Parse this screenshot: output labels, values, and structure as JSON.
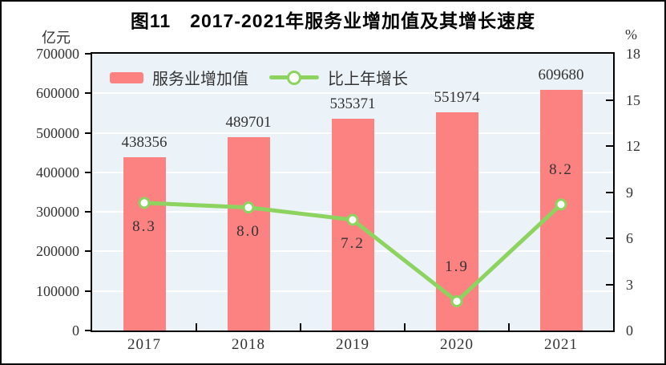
{
  "figure": {
    "title": "图11　2017-2021年服务业增加值及其增长速度",
    "unit_left": "亿元",
    "unit_right": "%"
  },
  "chart_data": {
    "type": "bar",
    "subtype": "bar+line combo",
    "title": "图11　2017-2021年服务业增加值及其增长速度",
    "categories": [
      "2017",
      "2018",
      "2019",
      "2020",
      "2021"
    ],
    "series": [
      {
        "name": "服务业增加值",
        "type": "bar",
        "axis": "left",
        "unit": "亿元",
        "color": "#FC8181",
        "values": [
          438356,
          489701,
          535371,
          551974,
          609680
        ],
        "display_labels": [
          "438356",
          "489701",
          "535371",
          "551974",
          "609680"
        ]
      },
      {
        "name": "比上年增长",
        "type": "line",
        "axis": "right",
        "unit": "%",
        "color": "#8DD35F",
        "marker": "circle-white-green-ring",
        "values": [
          8.3,
          8.0,
          7.2,
          1.9,
          8.2
        ],
        "display_labels": [
          "8.3",
          "8.0",
          "7.2",
          "1.9",
          "8.2"
        ],
        "label_positions": [
          "below",
          "below",
          "below",
          "above",
          "above"
        ]
      }
    ],
    "left_axis": {
      "label": "亿元",
      "min": 0,
      "max": 700000,
      "step": 100000,
      "ticks": [
        "700000",
        "600000",
        "500000",
        "400000",
        "300000",
        "200000",
        "100000",
        "0"
      ]
    },
    "right_axis": {
      "label": "%",
      "min": 0,
      "max": 18,
      "step": 3,
      "ticks": [
        "18",
        "15",
        "12",
        "9",
        "6",
        "3",
        "0"
      ]
    },
    "grid": "horizontal white lines on light-blue plot background",
    "plot_bg": "#ECF3F8",
    "legend_position": "top-left inside plot"
  }
}
